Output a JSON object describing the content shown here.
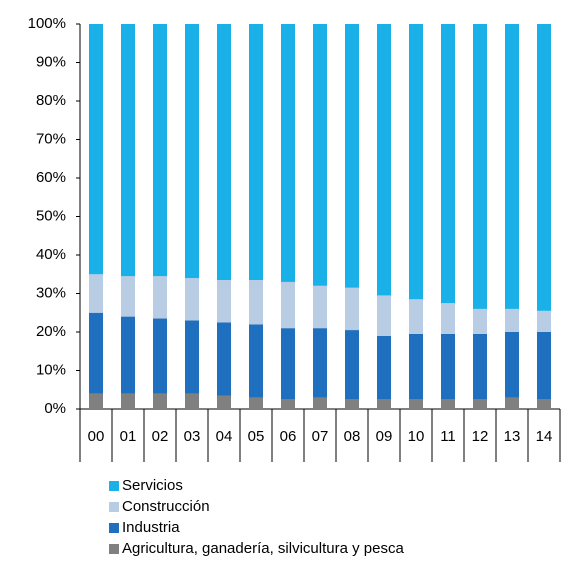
{
  "chart_data": {
    "type": "stacked_bar",
    "categories": [
      "00",
      "01",
      "02",
      "03",
      "04",
      "05",
      "06",
      "07",
      "08",
      "09",
      "10",
      "11",
      "12",
      "13",
      "14"
    ],
    "series": [
      {
        "name": "Servicios",
        "color": "#1ab0e8",
        "values": [
          65,
          65.5,
          65.5,
          66,
          66.5,
          66.5,
          67,
          68,
          68.5,
          70.5,
          71.5,
          72.5,
          74,
          74,
          74.5
        ]
      },
      {
        "name": "Construcción",
        "color": "#b8cce4",
        "values": [
          10,
          10.5,
          11,
          11,
          11,
          11.5,
          12,
          11,
          11,
          10.5,
          9,
          8,
          6.5,
          6,
          5.5
        ]
      },
      {
        "name": "Industria",
        "color": "#1f6fbf",
        "values": [
          21,
          20,
          19.5,
          19,
          19,
          19,
          18.5,
          18,
          18,
          16.5,
          17,
          17,
          17,
          17,
          17.5
        ]
      },
      {
        "name": "Agricultura, ganadería, silvicultura  y pesca",
        "color": "#808080",
        "values": [
          4,
          4,
          4,
          4,
          3.5,
          3,
          2.5,
          3,
          2.5,
          2.5,
          2.5,
          2.5,
          2.5,
          3,
          2.5
        ]
      }
    ],
    "ylim": [
      0,
      100
    ],
    "yticks": [
      {
        "value": 0,
        "label": "0%"
      },
      {
        "value": 10,
        "label": "10%"
      },
      {
        "value": 20,
        "label": "20%"
      },
      {
        "value": 30,
        "label": "30%"
      },
      {
        "value": 40,
        "label": "40%"
      },
      {
        "value": 50,
        "label": "50%"
      },
      {
        "value": 60,
        "label": "60%"
      },
      {
        "value": 70,
        "label": "70%"
      },
      {
        "value": 80,
        "label": "80%"
      },
      {
        "value": 90,
        "label": "90%"
      },
      {
        "value": 100,
        "label": "100%"
      }
    ],
    "legend": "bottom"
  }
}
